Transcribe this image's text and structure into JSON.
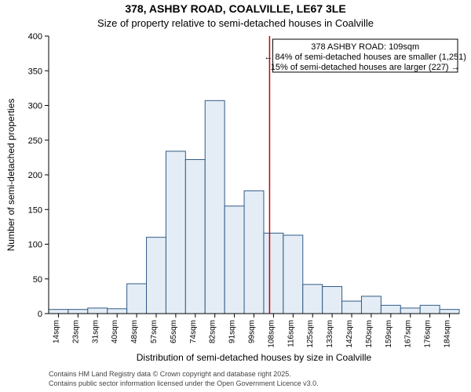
{
  "title": "378, ASHBY ROAD, COALVILLE, LE67 3LE",
  "subtitle": "Size of property relative to semi-detached houses in Coalville",
  "ylabel": "Number of semi-detached properties",
  "xlabel": "Distribution of semi-detached houses by size in Coalville",
  "credits": [
    "Contains HM Land Registry data © Crown copyright and database right 2025.",
    "Contains public sector information licensed under the Open Government Licence v3.0."
  ],
  "annotation": {
    "line1": "378 ASHBY ROAD: 109sqm",
    "line2": "← 84% of semi-detached houses are smaller (1,251)",
    "line3": "15% of semi-detached houses are larger (227) →"
  },
  "x_ticks": [
    "14sqm",
    "23sqm",
    "31sqm",
    "40sqm",
    "48sqm",
    "57sqm",
    "65sqm",
    "74sqm",
    "82sqm",
    "91sqm",
    "99sqm",
    "108sqm",
    "116sqm",
    "125sqm",
    "133sqm",
    "142sqm",
    "150sqm",
    "159sqm",
    "167sqm",
    "176sqm",
    "184sqm"
  ],
  "y_ticks": [
    0,
    50,
    100,
    150,
    200,
    250,
    300,
    350,
    400
  ],
  "ylim": [
    0,
    400
  ],
  "bars": [
    6,
    6,
    8,
    7,
    43,
    110,
    234,
    222,
    307,
    155,
    177,
    116,
    113,
    42,
    39,
    18,
    25,
    12,
    8,
    12,
    6
  ],
  "bar_fill": "#e4edf6",
  "bar_stroke": "#325a88",
  "ref_color": "#cc0000",
  "ref_index": 11.3,
  "background": "#ffffff",
  "title_fontsize": 14,
  "subtitle_fontsize": 13,
  "axis_label_fontsize": 12,
  "tick_fontsize": 11,
  "annot_fontsize": 11,
  "credit_fontsize": 9
}
